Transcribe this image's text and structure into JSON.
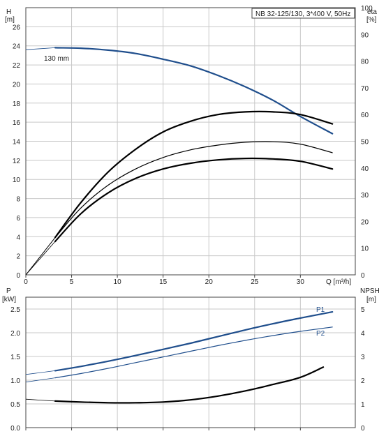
{
  "chart_data": [
    {
      "type": "line",
      "title": "NB 32-125/130, 3*400 V, 50Hz",
      "xlabel": "Q [m³/h]",
      "ylabel": [
        "H",
        "[m]"
      ],
      "ylabel_right": [
        "eta",
        "[%]"
      ],
      "xlim": [
        0,
        36
      ],
      "ylim": [
        0,
        28
      ],
      "ylim_right": [
        0,
        100
      ],
      "x_ticks": [
        0,
        5,
        10,
        15,
        20,
        25,
        30
      ],
      "y_ticks": [
        0,
        2,
        4,
        6,
        8,
        10,
        12,
        14,
        16,
        18,
        20,
        22,
        24,
        26
      ],
      "y_ticks_right": [
        0,
        10,
        20,
        30,
        40,
        50,
        60,
        70,
        80,
        90,
        100
      ],
      "grid": true,
      "annotation": "130 mm",
      "series": [
        {
          "axis": "left",
          "color": "#1f4e8c",
          "x": [
            0,
            3.2,
            6,
            9,
            12,
            15,
            18,
            21,
            24,
            27,
            30,
            33.5
          ],
          "values": [
            23.6,
            23.8,
            23.75,
            23.55,
            23.2,
            22.6,
            21.9,
            20.9,
            19.7,
            18.3,
            16.6,
            14.8
          ],
          "extrapolate_to": 3.2
        },
        {
          "axis": "left",
          "color": "#000000",
          "x": [
            0,
            3.2,
            6,
            9,
            12,
            15,
            18,
            21,
            24,
            27,
            30,
            33.5
          ],
          "values": [
            0,
            3.5,
            6.4,
            8.6,
            10.1,
            11.1,
            11.7,
            12.05,
            12.2,
            12.15,
            11.9,
            11.1
          ],
          "extrapolate_to": 3.2
        },
        {
          "axis": "right",
          "color": "#000000",
          "x": [
            0,
            3.2,
            6,
            9,
            12,
            15,
            18,
            21,
            24,
            27,
            30,
            33.5
          ],
          "values": [
            0,
            14,
            27,
            38.5,
            47,
            53.5,
            57.5,
            60,
            61,
            61,
            60,
            56.5
          ],
          "extrapolate_to": 3.2
        },
        {
          "axis": "left",
          "color": "#000000",
          "x": [
            0,
            3.2,
            6,
            9,
            12,
            15,
            18,
            21,
            24,
            27,
            30,
            33.5
          ],
          "values": [
            0,
            3.9,
            7.0,
            9.4,
            11.1,
            12.3,
            13.1,
            13.6,
            13.9,
            13.95,
            13.7,
            12.8
          ],
          "extrapolate_to": 3.2
        }
      ]
    },
    {
      "type": "line",
      "xlabel": "",
      "ylabel": [
        "P",
        "[kW]"
      ],
      "ylabel_right": [
        "NPSH",
        "[m]"
      ],
      "xlim": [
        0,
        36
      ],
      "ylim": [
        0,
        2.75
      ],
      "ylim_right": [
        0,
        5.5
      ],
      "y_ticks": [
        0.0,
        0.5,
        1.0,
        1.5,
        2.0,
        2.5
      ],
      "y_tick_labels": [
        "0.0",
        "0.5",
        "1.0",
        "1.5",
        "2.0",
        "2.5"
      ],
      "y_ticks_right": [
        0,
        1,
        2,
        3,
        4,
        5
      ],
      "grid": true,
      "series": [
        {
          "name": "P1",
          "axis": "left",
          "color": "#1f4e8c",
          "x": [
            0,
            3.2,
            6,
            9,
            12,
            15,
            18,
            21,
            24,
            27,
            30,
            33.5
          ],
          "values": [
            1.12,
            1.2,
            1.29,
            1.4,
            1.52,
            1.65,
            1.78,
            1.92,
            2.06,
            2.19,
            2.31,
            2.44
          ],
          "extrapolate_to": 3.2
        },
        {
          "name": "P2",
          "axis": "left",
          "color": "#1f4e8c",
          "x": [
            0,
            3.2,
            6,
            9,
            12,
            15,
            18,
            21,
            24,
            27,
            30,
            33.5
          ],
          "values": [
            0.96,
            1.05,
            1.14,
            1.25,
            1.37,
            1.49,
            1.61,
            1.73,
            1.84,
            1.94,
            2.03,
            2.12
          ],
          "extrapolate_to": 3.2
        },
        {
          "axis": "right",
          "color": "#000000",
          "x": [
            0,
            3.2,
            6,
            9,
            12,
            15,
            18,
            21,
            24,
            27,
            30,
            32.5
          ],
          "values": [
            1.2,
            1.12,
            1.08,
            1.05,
            1.05,
            1.08,
            1.17,
            1.33,
            1.55,
            1.82,
            2.12,
            2.55
          ],
          "extrapolate_to": 3.2
        }
      ]
    }
  ]
}
